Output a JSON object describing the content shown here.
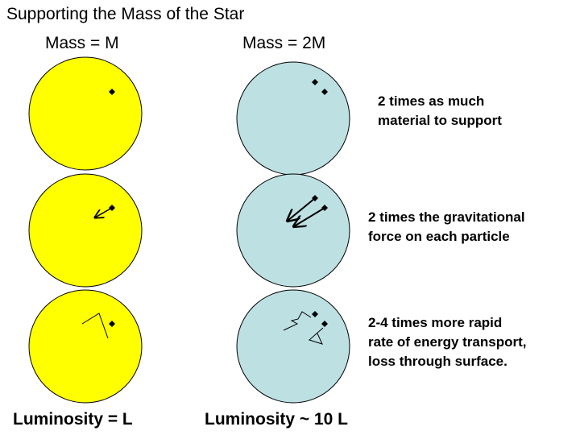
{
  "title": "Supporting the Mass of the Star",
  "columns": {
    "left": {
      "heading": "Mass = M",
      "luminosity": "Luminosity = L",
      "fill_color": "#ffff00"
    },
    "right": {
      "heading": "Mass = 2M",
      "luminosity": "Luminosity ~ 10 L",
      "fill_color": "#bde0e3"
    }
  },
  "notes": {
    "row1": [
      "2 times as much",
      "material to support"
    ],
    "row2": [
      "2 times the gravitational",
      "force on each particle"
    ],
    "row3": [
      "2-4 times more rapid",
      "rate of energy transport,",
      "loss through surface."
    ]
  }
}
